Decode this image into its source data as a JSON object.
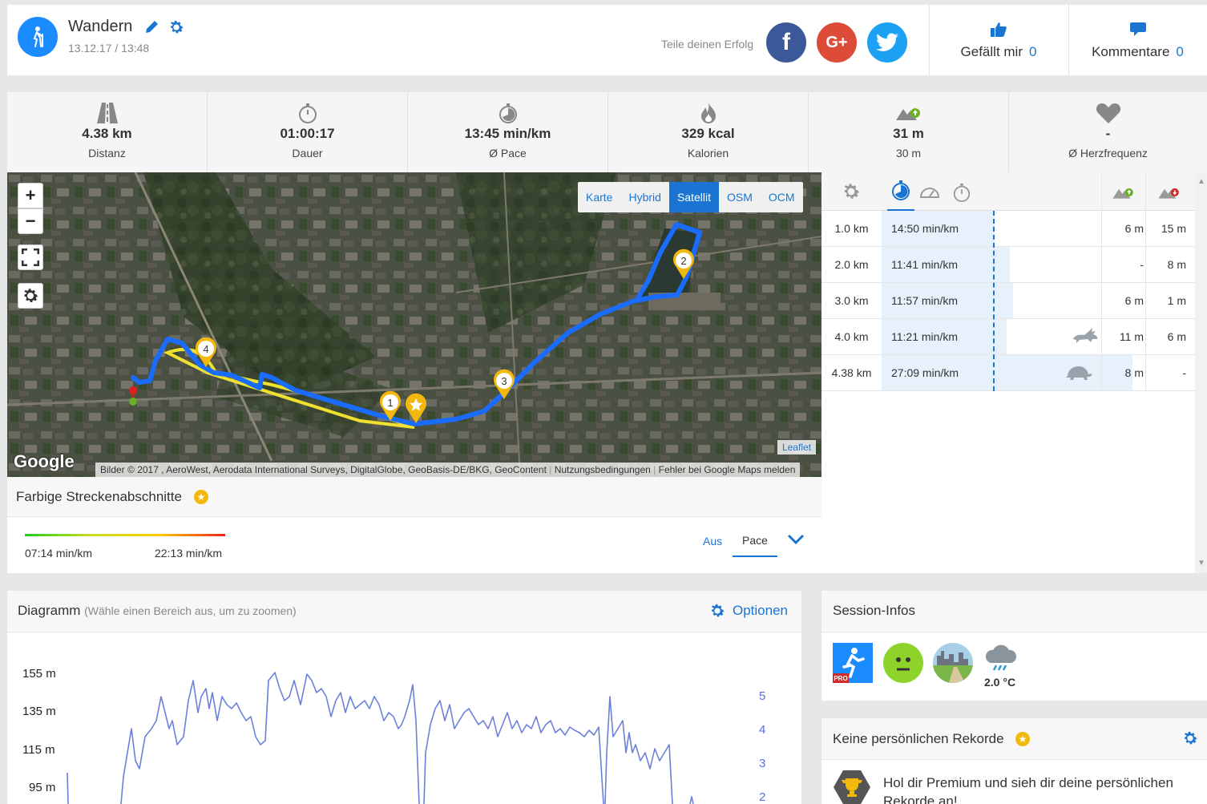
{
  "header": {
    "title": "Wandern",
    "date": "13.12.17 / 13:48",
    "share_label": "Teile deinen Erfolg",
    "facebook_glyph": "f",
    "google_glyph": "G+",
    "like_label": "Gefällt mir",
    "like_count": "0",
    "comment_label": "Kommentare",
    "comment_count": "0"
  },
  "stats": [
    {
      "icon": "road-icon",
      "value": "4.38 km",
      "label": "Distanz"
    },
    {
      "icon": "stopwatch-icon",
      "value": "01:00:17",
      "label": "Dauer"
    },
    {
      "icon": "pace-icon",
      "value": "13:45 min/km",
      "label": "Ø Pace"
    },
    {
      "icon": "flame-icon",
      "value": "329 kcal",
      "label": "Kalorien"
    },
    {
      "icon": "elevation-up-icon",
      "value": "31 m",
      "label": "30 m"
    },
    {
      "icon": "heart-icon",
      "value": "-",
      "label": "Ø Herzfrequenz"
    }
  ],
  "map": {
    "zoom_in": "+",
    "zoom_out": "−",
    "map_types": [
      "Karte",
      "Hybrid",
      "Satellit",
      "OSM",
      "OCM"
    ],
    "active_map_type": "Satellit",
    "google_logo": "Google",
    "leaflet": "Leaflet",
    "attribution": "Bilder © 2017 , AeroWest, Aerodata International Surveys, DigitalGlobe, GeoBasis-DE/BKG, GeoContent",
    "terms": "Nutzungsbedingungen",
    "report": "Fehler bei Google Maps melden",
    "markers": [
      "1",
      "2",
      "3",
      "4"
    ]
  },
  "segments": {
    "rows": [
      {
        "km": "1.0 km",
        "pace": "14:50 min/km",
        "up": "6 m",
        "down": "15 m",
        "icon": "",
        "bar_fraction": 0.36
      },
      {
        "km": "2.0 km",
        "pace": "11:41 min/km",
        "up": "-",
        "down": "8 m",
        "icon": "",
        "bar_fraction": 0.41
      },
      {
        "km": "3.0 km",
        "pace": "11:57 min/km",
        "up": "6 m",
        "down": "1 m",
        "icon": "",
        "bar_fraction": 0.42
      },
      {
        "km": "4.0 km",
        "pace": "11:21 min/km",
        "up": "11 m",
        "down": "6 m",
        "icon": "rabbit-icon",
        "bar_fraction": 0.4
      },
      {
        "km": "4.38 km",
        "pace": "27:09 min/km",
        "up": "8 m",
        "down": "-",
        "icon": "turtle-icon",
        "bar_fraction": 0.8
      }
    ]
  },
  "colored_segments": {
    "title": "Farbige Streckenabschnitte",
    "min_label": "07:14 min/km",
    "max_label": "22:13 min/km",
    "option_off": "Aus",
    "option_pace": "Pace"
  },
  "diagram": {
    "title": "Diagramm",
    "hint": "(Wähle einen Bereich aus, um zu zoomen)",
    "options_label": "Optionen",
    "y_left": [
      "155 m",
      "135 m",
      "115 m",
      "95 m"
    ],
    "y_right": [
      "5",
      "4",
      "3",
      "2"
    ]
  },
  "session": {
    "title": "Session-Infos",
    "temperature": "2.0 °C",
    "pro_badge": "PRO"
  },
  "records": {
    "title": "Keine persönlichen Rekorde",
    "text": "Hol dir Premium und sieh dir deine persönlichen Rekorde an!"
  },
  "colors": {
    "accent": "#1a75d2",
    "route": "#1a6cff",
    "marker": "#f2b90c"
  }
}
